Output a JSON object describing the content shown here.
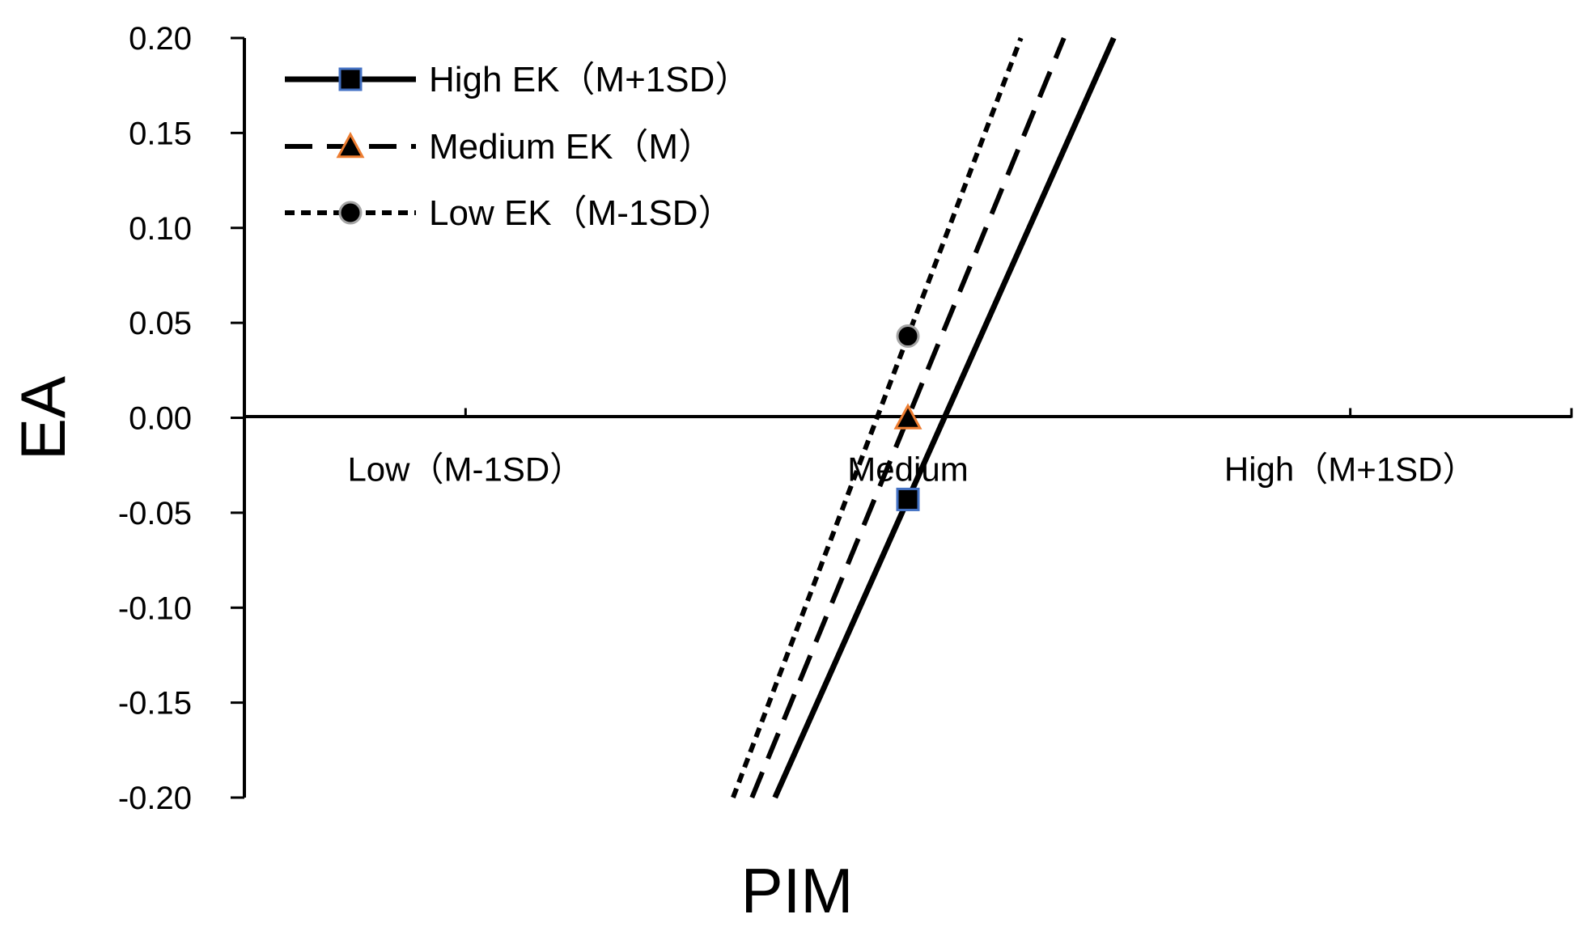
{
  "chart_data": {
    "type": "line",
    "title": "",
    "xlabel": "PIM",
    "ylabel": "EA",
    "x_positions": [
      -1,
      0,
      1
    ],
    "x_categories": [
      "Low（M-1SD）",
      "Medium",
      "High（M+1SD）"
    ],
    "xlim": [
      -1.5,
      1.5
    ],
    "ylim": [
      -0.2,
      0.2
    ],
    "y_ticks": [
      0.2,
      0.15,
      0.1,
      0.05,
      0.0,
      -0.05,
      -0.1,
      -0.15,
      -0.2
    ],
    "y_tick_labels": [
      "0.20",
      "0.15",
      "0.10",
      "0.05",
      "0.00",
      "-0.05",
      "-0.10",
      "-0.15",
      "-0.20"
    ],
    "grid": false,
    "legend_position": "top-left",
    "series": [
      {
        "name": "High EK（M+1SD）",
        "dash": "solid",
        "marker": "square",
        "marker_fill": "#000000",
        "marker_edge": "#4472C4",
        "intercept": -0.043,
        "slope": 0.5224,
        "marker_point": [
          0,
          -0.043
        ]
      },
      {
        "name": "Medium EK（M）",
        "dash": "long-dash",
        "marker": "triangle",
        "marker_fill": "#000000",
        "marker_edge": "#ED7D31",
        "intercept": 0.0,
        "slope": 0.5672,
        "marker_point": [
          0,
          0.0
        ]
      },
      {
        "name": "Low EK（M-1SD）",
        "dash": "short-dash",
        "marker": "circle",
        "marker_fill": "#000000",
        "marker_edge": "#A5A5A5",
        "intercept": 0.043,
        "slope": 0.6148,
        "marker_point": [
          0,
          0.043
        ]
      }
    ]
  }
}
